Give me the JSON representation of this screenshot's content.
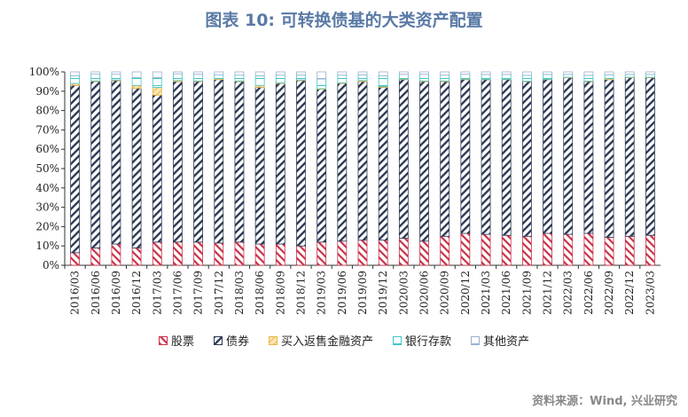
{
  "title": "图表 10: 可转换债基的大类资产配置",
  "source": "资料来源：Wind, 兴业研究",
  "chart_data": {
    "type": "bar",
    "stacked": true,
    "title": "图表 10: 可转换债基的大类资产配置",
    "ylim": [
      0,
      100
    ],
    "yticks": [
      "0%",
      "10%",
      "20%",
      "30%",
      "40%",
      "50%",
      "60%",
      "70%",
      "80%",
      "90%",
      "100%"
    ],
    "grid": false,
    "legend_position": "bottom",
    "categories": [
      "2016/03",
      "2016/06",
      "2016/09",
      "2016/12",
      "2017/03",
      "2017/06",
      "2017/09",
      "2017/12",
      "2018/03",
      "2018/06",
      "2018/09",
      "2018/12",
      "2019/03",
      "2019/06",
      "2019/09",
      "2019/12",
      "2020/03",
      "2020/06",
      "2020/09",
      "2020/12",
      "2021/03",
      "2021/06",
      "2021/09",
      "2021/12",
      "2022/03",
      "2022/06",
      "2022/09",
      "2022/12",
      "2023/03"
    ],
    "series": [
      {
        "name": "股票",
        "color": "#c8324b",
        "values": [
          6.5,
          9,
          11,
          9,
          12,
          12,
          12,
          11.5,
          12,
          11,
          11,
          10,
          12,
          12.5,
          13,
          13,
          14,
          12.5,
          15,
          16.5,
          16,
          15.5,
          15,
          16.5,
          16,
          16.5,
          14.5,
          15,
          15.5
        ]
      },
      {
        "name": "债券",
        "color": "#2e3a55",
        "values": [
          86.5,
          86,
          84.5,
          82.5,
          76,
          83,
          83,
          84.5,
          83,
          81,
          83,
          85.5,
          79,
          81.5,
          82,
          79,
          82,
          82.5,
          80,
          79.5,
          80,
          80.5,
          80,
          79.5,
          81,
          78.5,
          81.5,
          82,
          81.5
        ]
      },
      {
        "name": "买入返售金融资产",
        "color": "#e8b64a",
        "values": [
          1,
          0.3,
          0.3,
          1.5,
          4,
          0.5,
          0.3,
          0.5,
          0.3,
          1,
          0.3,
          0.3,
          0.3,
          0.3,
          0.5,
          0.5,
          0.3,
          0.3,
          0.3,
          0.3,
          0.2,
          0.2,
          0.2,
          0.2,
          0.2,
          0.2,
          0.5,
          0.2,
          0.2
        ]
      },
      {
        "name": "银行存款",
        "color": "#40c4c8",
        "values": [
          4,
          3.5,
          3,
          4,
          5,
          3.5,
          3.5,
          2,
          3,
          5,
          4,
          2.5,
          5,
          4,
          3,
          5.5,
          2.5,
          3.5,
          3,
          2.5,
          2.5,
          2.5,
          3,
          2.5,
          1.5,
          3,
          2,
          1.5,
          1.5
        ]
      },
      {
        "name": "其他资产",
        "color": "#9ab0d0",
        "values": [
          2,
          1.2,
          1.2,
          3,
          3,
          1,
          1.2,
          1.5,
          1.7,
          2,
          1.7,
          1.7,
          3.7,
          1.7,
          1.5,
          2,
          1.2,
          1.2,
          1.7,
          1.2,
          1.3,
          1.3,
          1.8,
          1.3,
          1.3,
          1.8,
          1.5,
          1.3,
          1.3
        ]
      }
    ]
  }
}
